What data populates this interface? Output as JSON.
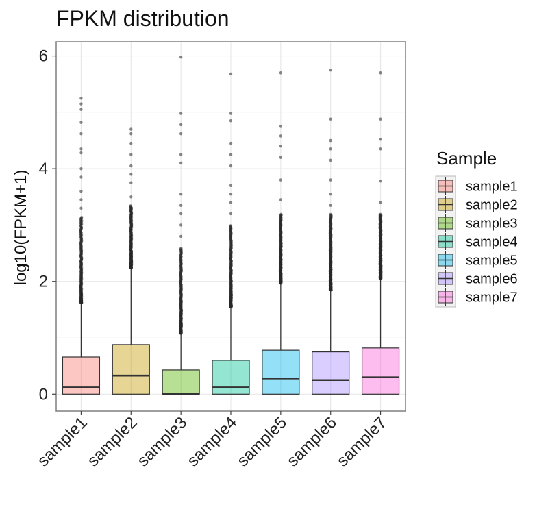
{
  "chart_data": {
    "type": "boxplot",
    "title": "FPKM distribution",
    "xlabel": "",
    "ylabel": "log10(FPKM+1)",
    "ylim": [
      -0.3,
      6.25
    ],
    "yticks": [
      0,
      2,
      4,
      6
    ],
    "grid": true,
    "legend": {
      "title": "Sample",
      "position": "right"
    },
    "categories": [
      "sample1",
      "sample2",
      "sample3",
      "sample4",
      "sample5",
      "sample6",
      "sample7"
    ],
    "series": [
      {
        "name": "sample1",
        "color": "#F8766D",
        "q1": 0.0,
        "median": 0.12,
        "q3": 0.66,
        "whisker_low": 0.0,
        "whisker_high": 1.62,
        "outlier_min": 1.62,
        "outlier_dense_max": 3.15,
        "outlier_sparse": [
          3.3,
          3.45,
          3.6,
          3.85,
          4.0,
          4.28,
          4.35,
          4.62,
          4.82,
          5.05,
          5.15,
          5.25
        ]
      },
      {
        "name": "sample2",
        "color": "#C49A00",
        "q1": 0.0,
        "median": 0.33,
        "q3": 0.88,
        "whisker_low": 0.0,
        "whisker_high": 2.24,
        "outlier_min": 2.24,
        "outlier_dense_max": 3.35,
        "outlier_sparse": [
          3.5,
          3.75,
          3.9,
          4.05,
          4.25,
          4.45,
          4.62,
          4.7
        ]
      },
      {
        "name": "sample3",
        "color": "#53B400",
        "q1": 0.0,
        "median": 0.0,
        "q3": 0.43,
        "whisker_low": 0.0,
        "whisker_high": 1.08,
        "outlier_min": 1.08,
        "outlier_dense_max": 2.6,
        "outlier_sparse": [
          2.8,
          3.0,
          3.2,
          3.35,
          3.55,
          4.1,
          4.25,
          4.62,
          4.78,
          4.98,
          5.98
        ]
      },
      {
        "name": "sample4",
        "color": "#00C094",
        "q1": 0.0,
        "median": 0.12,
        "q3": 0.6,
        "whisker_low": 0.0,
        "whisker_high": 1.55,
        "outlier_min": 1.55,
        "outlier_dense_max": 3.0,
        "outlier_sparse": [
          3.2,
          3.4,
          3.55,
          3.7,
          4.05,
          4.25,
          4.45,
          4.85,
          4.98,
          5.68
        ]
      },
      {
        "name": "sample5",
        "color": "#00B6EB",
        "q1": 0.0,
        "median": 0.28,
        "q3": 0.78,
        "whisker_low": 0.0,
        "whisker_high": 1.97,
        "outlier_min": 1.97,
        "outlier_dense_max": 3.2,
        "outlier_sparse": [
          3.45,
          3.8,
          4.2,
          4.4,
          4.58,
          4.75,
          5.7
        ]
      },
      {
        "name": "sample6",
        "color": "#A58AFF",
        "q1": 0.0,
        "median": 0.25,
        "q3": 0.75,
        "whisker_low": 0.0,
        "whisker_high": 1.85,
        "outlier_min": 1.85,
        "outlier_dense_max": 3.2,
        "outlier_sparse": [
          3.35,
          3.55,
          3.8,
          4.15,
          4.35,
          4.5,
          4.88,
          5.75
        ]
      },
      {
        "name": "sample7",
        "color": "#FB61D7",
        "q1": 0.0,
        "median": 0.3,
        "q3": 0.82,
        "whisker_low": 0.0,
        "whisker_high": 2.05,
        "outlier_min": 2.05,
        "outlier_dense_max": 3.2,
        "outlier_sparse": [
          3.4,
          3.78,
          4.35,
          4.52,
          4.88,
          5.7
        ]
      }
    ]
  }
}
